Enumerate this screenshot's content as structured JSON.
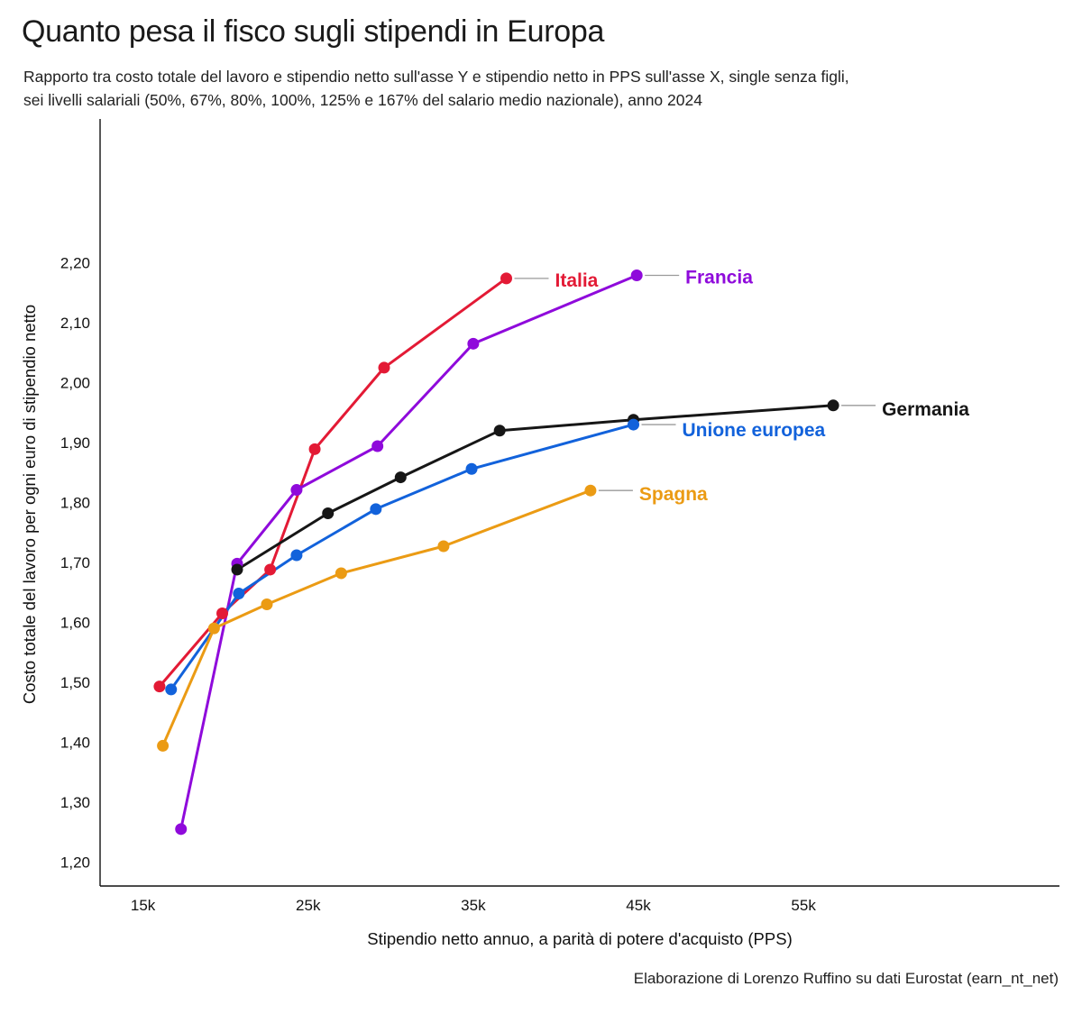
{
  "header": {
    "title": "Quanto pesa il fisco sugli stipendi in Europa",
    "subtitle_line1": "Rapporto tra costo totale del lavoro e stipendio netto sull'asse Y e stipendio netto in PPS sull'asse X, single senza figli,",
    "subtitle_line2": "sei livelli salariali (50%, 67%, 80%, 100%, 125% e 167% del salario medio nazionale), anno 2024"
  },
  "caption": "Elaborazione di Lorenzo Ruffino su dati Eurostat (earn_nt_net)",
  "chart_data": {
    "type": "line",
    "title": "Quanto pesa il fisco sugli stipendi in Europa",
    "xlabel": "Stipendio netto annuo, a parità di potere d'acquisto (PPS)",
    "ylabel": "Costo totale del lavoro per ogni euro di stipendio netto",
    "xlim": [
      12400,
      70500
    ],
    "ylim": [
      1.16,
      2.44
    ],
    "x_ticks": [
      15000,
      25000,
      35000,
      45000,
      55000
    ],
    "x_tick_labels": [
      "15k",
      "25k",
      "35k",
      "45k",
      "55k"
    ],
    "y_ticks": [
      1.2,
      1.3,
      1.4,
      1.5,
      1.6,
      1.7,
      1.8,
      1.9,
      2.0,
      2.1,
      2.2
    ],
    "y_tick_labels": [
      "1,20",
      "1,30",
      "1,40",
      "1,50",
      "1,60",
      "1,70",
      "1,80",
      "1,90",
      "2,00",
      "2,10",
      "2,20"
    ],
    "grid": false,
    "legend": "direct labels at line ends",
    "series": [
      {
        "name": "Italia",
        "color": "#e31a35",
        "points": [
          [
            16000,
            1.493
          ],
          [
            19800,
            1.615
          ],
          [
            22700,
            1.688
          ],
          [
            25400,
            1.889
          ],
          [
            29600,
            2.025
          ],
          [
            37000,
            2.174
          ]
        ]
      },
      {
        "name": "Francia",
        "color": "#8f0adb",
        "points": [
          [
            17300,
            1.255
          ],
          [
            20700,
            1.698
          ],
          [
            24300,
            1.821
          ],
          [
            29200,
            1.894
          ],
          [
            35000,
            2.065
          ],
          [
            44900,
            2.179
          ]
        ]
      },
      {
        "name": "Germania",
        "color": "#161616",
        "points": [
          [
            20700,
            1.688
          ],
          [
            26200,
            1.782
          ],
          [
            30600,
            1.842
          ],
          [
            36600,
            1.92
          ],
          [
            44700,
            1.938
          ],
          [
            56800,
            1.962
          ]
        ]
      },
      {
        "name": "Unione europea",
        "color": "#1262db",
        "points": [
          [
            16700,
            1.488
          ],
          [
            20800,
            1.648
          ],
          [
            24300,
            1.712
          ],
          [
            29100,
            1.789
          ],
          [
            34900,
            1.856
          ],
          [
            44700,
            1.93
          ]
        ]
      },
      {
        "name": "Spagna",
        "color": "#eb9b14",
        "points": [
          [
            16200,
            1.394
          ],
          [
            19300,
            1.59
          ],
          [
            22500,
            1.63
          ],
          [
            27000,
            1.682
          ],
          [
            33200,
            1.727
          ],
          [
            42100,
            1.82
          ]
        ]
      }
    ]
  }
}
